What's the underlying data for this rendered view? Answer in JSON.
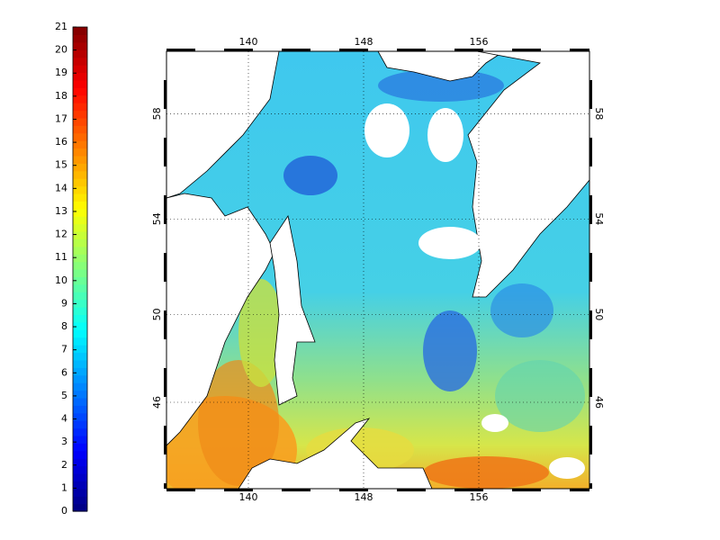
{
  "colorbar": {
    "ticks": [
      0,
      1,
      2,
      3,
      4,
      5,
      6,
      7,
      8,
      9,
      10,
      11,
      12,
      13,
      14,
      15,
      16,
      17,
      18,
      19,
      20,
      21
    ]
  },
  "map": {
    "lon_ticks": [
      140,
      148,
      156
    ],
    "lat_ticks": [
      46,
      50,
      54,
      58
    ]
  }
}
